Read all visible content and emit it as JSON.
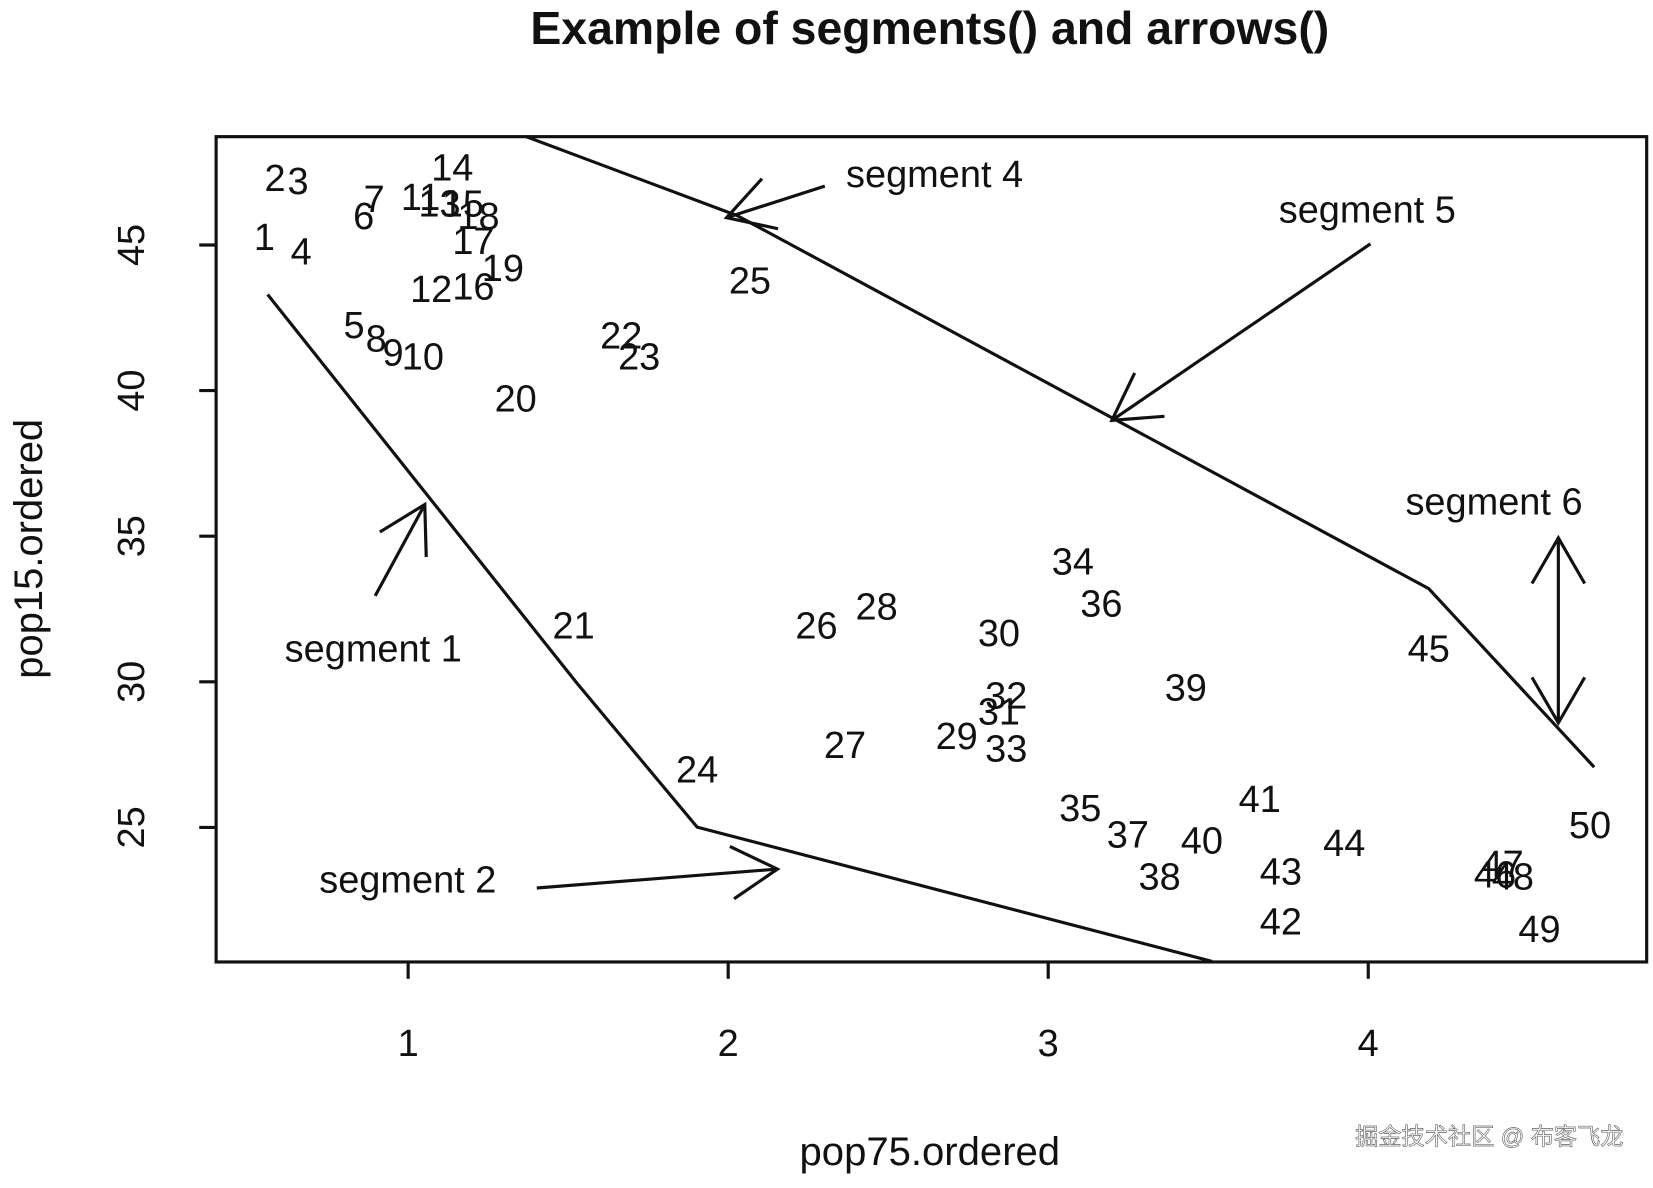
{
  "chart_data": {
    "type": "text-scatter",
    "title": "Example of segments() and arrows()",
    "x_label": "pop75.ordered",
    "y_label": "pop15.ordered",
    "xlim": [
      0.4,
      4.87
    ],
    "ylim": [
      20.38,
      48.72
    ],
    "xticks": [
      1,
      2,
      3,
      4
    ],
    "yticks": [
      25,
      30,
      35,
      40,
      45
    ],
    "color": "#111111",
    "points": {
      "labels": [
        "1",
        "2",
        "3",
        "4",
        "5",
        "6",
        "7",
        "8",
        "9",
        "10",
        "11",
        "12",
        "13",
        "14",
        "15",
        "16",
        "17",
        "18",
        "19",
        "20",
        "21",
        "22",
        "23",
        "24",
        "25",
        "26",
        "27",
        "28",
        "29",
        "30",
        "31",
        "32",
        "33",
        "34",
        "35",
        "36",
        "37",
        "38",
        "39",
        "40",
        "41",
        "42",
        "43",
        "44",
        "45",
        "46",
        "47",
        "48",
        "49",
        "50"
      ],
      "x": [
        0.551,
        0.584,
        0.656,
        0.666,
        0.831,
        0.861,
        0.894,
        0.9,
        0.953,
        1.046,
        1.039,
        1.072,
        1.098,
        1.138,
        1.171,
        1.204,
        1.204,
        1.22,
        1.296,
        1.336,
        1.517,
        1.666,
        1.722,
        1.903,
        2.068,
        2.276,
        2.365,
        2.464,
        2.714,
        2.846,
        2.846,
        2.869,
        2.869,
        3.077,
        3.1,
        3.166,
        3.249,
        3.348,
        3.43,
        3.48,
        3.661,
        3.727,
        3.727,
        3.925,
        4.189,
        4.396,
        4.42,
        4.452,
        4.535,
        4.693
      ],
      "y": [
        45.18,
        47.2,
        47.09,
        44.68,
        42.15,
        45.9,
        46.48,
        41.68,
        41.21,
        41.07,
        46.55,
        43.38,
        46.33,
        47.56,
        46.33,
        43.48,
        45.04,
        45.9,
        44.1,
        39.62,
        31.83,
        41.79,
        41.07,
        26.89,
        43.67,
        31.83,
        27.72,
        32.48,
        28.04,
        31.58,
        28.87,
        29.42,
        27.61,
        34.03,
        25.56,
        32.59,
        24.65,
        23.21,
        29.7,
        24.44,
        25.88,
        21.66,
        23.39,
        24.36,
        31.04,
        23.28,
        23.64,
        23.21,
        21.41,
        24.98
      ]
    },
    "segments": [
      {
        "x": [
          0.561,
          1.527,
          1.903,
          3.512
        ],
        "y": [
          43.3,
          29.96,
          25.01,
          20.4
        ]
      },
      {
        "x": [
          1.369,
          2.028,
          4.189,
          4.706
        ],
        "y": [
          48.72,
          46.01,
          33.2,
          27.07
        ]
      }
    ],
    "arrows": [
      {
        "x0": 0.897,
        "y0": 32.95,
        "x1": 1.052,
        "y1": 36.09,
        "heads": "end"
      },
      {
        "x0": 1.402,
        "y0": 22.92,
        "x1": 2.154,
        "y1": 23.57,
        "heads": "end"
      },
      {
        "x0": 2.302,
        "y0": 47.02,
        "x1": 1.995,
        "y1": 45.94,
        "heads": "end"
      },
      {
        "x0": 4.007,
        "y0": 45.04,
        "x1": 3.199,
        "y1": 38.98,
        "heads": "end"
      },
      {
        "x0": 4.594,
        "y0": 34.94,
        "x1": 4.594,
        "y1": 28.59,
        "heads": "both"
      }
    ],
    "annotations": [
      {
        "text": "segment 1",
        "x": 0.891,
        "y": 31.04
      },
      {
        "text": "segment 2",
        "x": 0.999,
        "y": 23.1
      },
      {
        "text": "segment 4",
        "x": 2.645,
        "y": 47.34
      },
      {
        "text": "segment 5",
        "x": 3.997,
        "y": 46.12
      },
      {
        "text": "segment 6",
        "x": 4.393,
        "y": 36.09
      }
    ]
  },
  "watermark": "掘金技术社区 @ 布客飞龙"
}
